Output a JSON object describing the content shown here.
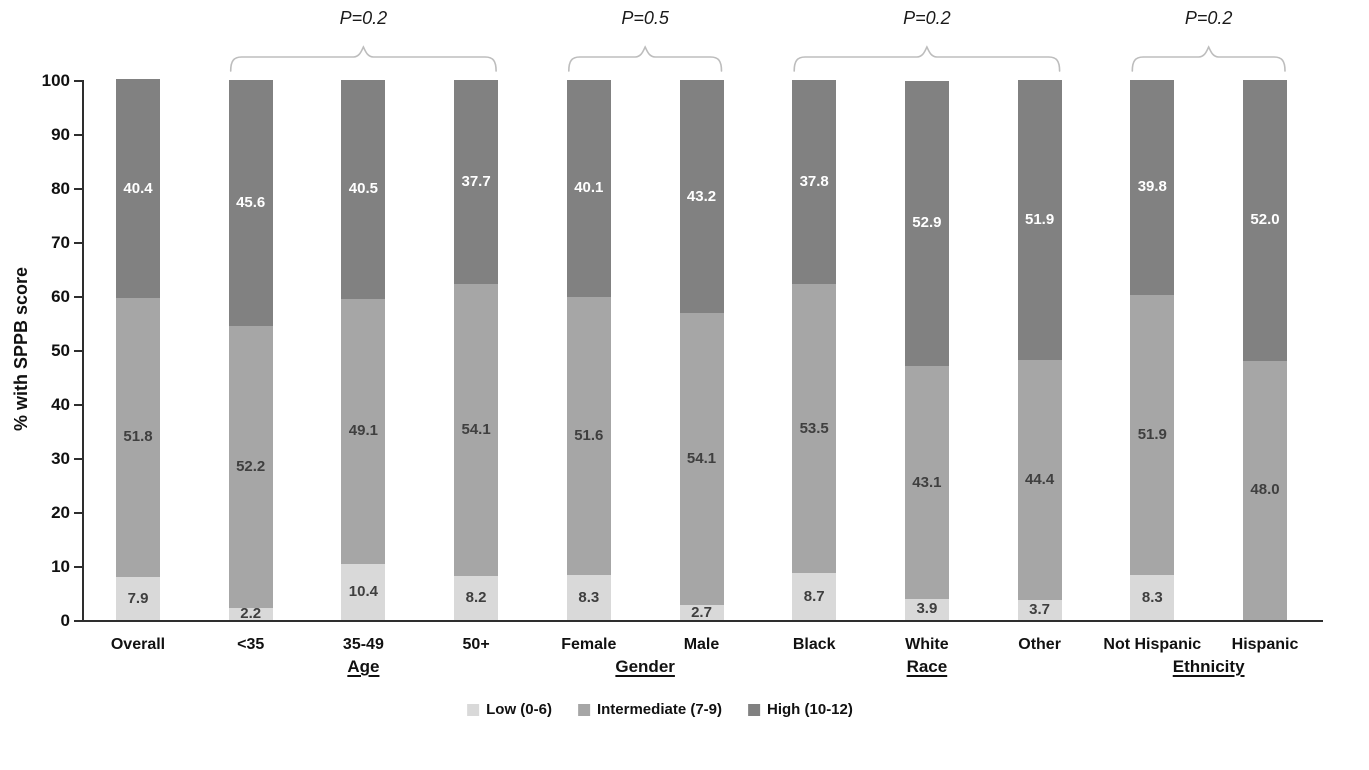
{
  "figure": {
    "background": "#ffffff"
  },
  "chart_data": {
    "type": "bar",
    "variant": "stacked-percent",
    "title": "",
    "ylabel": "% with SPPB score",
    "xlabel": "",
    "ylim": [
      0,
      100
    ],
    "ytick_step": 10,
    "yticks": [
      "0",
      "10",
      "20",
      "30",
      "40",
      "50",
      "60",
      "70",
      "80",
      "90",
      "100"
    ],
    "grid": "off",
    "categories": [
      "Overall",
      "<35",
      "35-49",
      "50+",
      "Female",
      "Male",
      "Black",
      "White",
      "Other",
      "Not Hispanic",
      "Hispanic"
    ],
    "series": [
      {
        "name": "Low (0-6)",
        "color": "#d9d9d9",
        "label_color": "#3f3f3f",
        "values": [
          7.9,
          2.2,
          10.4,
          8.2,
          8.3,
          2.7,
          8.7,
          3.9,
          3.7,
          8.3,
          0
        ],
        "labels": [
          "7.9",
          "2.2",
          "10.4",
          "8.2",
          "8.3",
          "2.7",
          "8.7",
          "3.9",
          "3.7",
          "8.3",
          ""
        ]
      },
      {
        "name": "Intermediate (7-9)",
        "color": "#a6a6a6",
        "label_color": "#3f3f3f",
        "values": [
          51.8,
          52.2,
          49.1,
          54.1,
          51.6,
          54.1,
          53.5,
          43.1,
          44.4,
          51.9,
          48.0
        ],
        "labels": [
          "51.8",
          "52.2",
          "49.1",
          "54.1",
          "51.6",
          "54.1",
          "53.5",
          "43.1",
          "44.4",
          "51.9",
          "48.0"
        ]
      },
      {
        "name": "High (10-12)",
        "color": "#818181",
        "label_color": "#ffffff",
        "values": [
          40.4,
          45.6,
          40.5,
          37.7,
          40.1,
          43.2,
          37.8,
          52.9,
          51.9,
          39.8,
          52.0
        ],
        "labels": [
          "40.4",
          "45.6",
          "40.5",
          "37.7",
          "40.1",
          "43.2",
          "37.8",
          "52.9",
          "51.9",
          "39.8",
          "52.0"
        ]
      }
    ],
    "groups": [
      {
        "label": "Age",
        "p_label": "P=0.2",
        "first_index": 1,
        "last_index": 3
      },
      {
        "label": "Gender",
        "p_label": "P=0.5",
        "first_index": 4,
        "last_index": 5
      },
      {
        "label": "Race",
        "p_label": "P=0.2",
        "first_index": 6,
        "last_index": 8
      },
      {
        "label": "Ethnicity",
        "p_label": "P=0.2",
        "first_index": 9,
        "last_index": 10
      }
    ],
    "legend": {
      "position": "bottom",
      "items": [
        "Low (0-6)",
        "Intermediate (7-9)",
        "High (10-12)"
      ]
    },
    "colors": {
      "axis": "#2e2e2e",
      "bracket": "#bdbdbd",
      "text": "#111111",
      "value_label_dark": "#3f3f3f",
      "value_label_light": "#ffffff"
    }
  }
}
